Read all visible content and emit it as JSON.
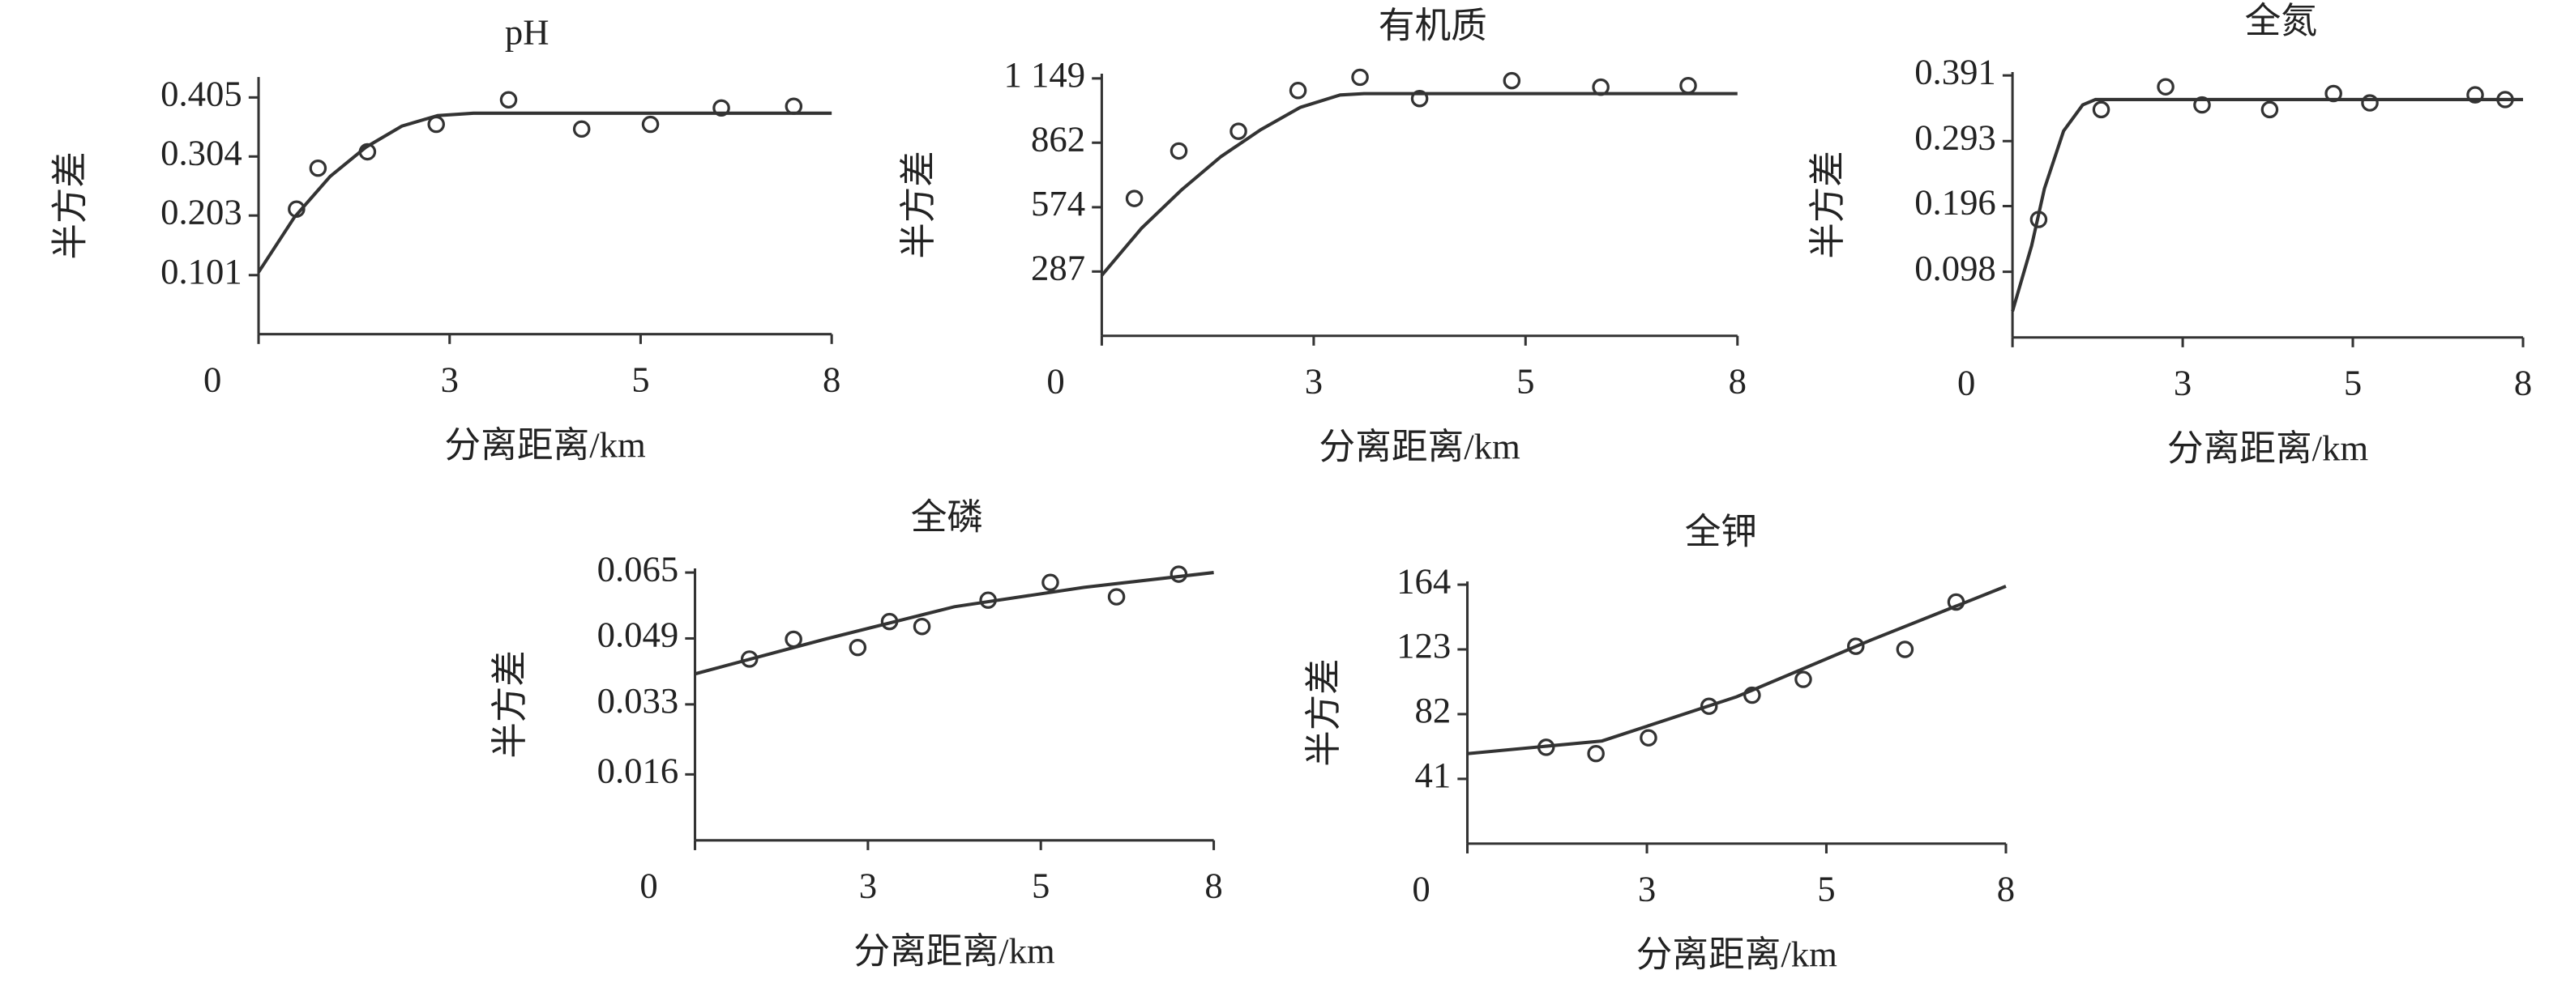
{
  "chart_data": [
    {
      "type": "scatter",
      "title": "pH",
      "xlabel": "分离距离/km",
      "ylabel": "半方差",
      "xlim": [
        0,
        8
      ],
      "xticks": [
        0,
        {
          "value": 2.667,
          "label": "3"
        },
        {
          "value": 5.333,
          "label": "5"
        },
        8
      ],
      "ylim": [
        0,
        0.44
      ],
      "yticks": [
        0.101,
        0.203,
        0.304,
        0.405
      ],
      "color": "#333333",
      "series": [
        {
          "style": "markers",
          "x": [
            0.53,
            0.83,
            1.52,
            2.48,
            3.49,
            4.51,
            5.47,
            6.46,
            7.47
          ],
          "values": [
            0.214,
            0.284,
            0.312,
            0.359,
            0.401,
            0.351,
            0.359,
            0.387,
            0.39
          ]
        },
        {
          "style": "line",
          "x": [
            0,
            0.5,
            1,
            1.5,
            2,
            2.5,
            3,
            8
          ],
          "values": [
            0.106,
            0.2,
            0.27,
            0.32,
            0.356,
            0.374,
            0.378,
            0.378
          ]
        }
      ]
    },
    {
      "type": "scatter",
      "title": "有机质",
      "xlabel": "分离距离/km",
      "ylabel": "半方差",
      "xlim": [
        0,
        8
      ],
      "xticks": [
        0,
        {
          "value": 2.667,
          "label": "3"
        },
        {
          "value": 5.333,
          "label": "5"
        },
        8
      ],
      "ylim": [
        0,
        1170
      ],
      "yticks": [
        287,
        574,
        862,
        {
          "value": 1149,
          "label": "1 149"
        }
      ],
      "color": "#333333",
      "series": [
        {
          "style": "markers",
          "x": [
            0.41,
            0.97,
            1.72,
            2.47,
            3.25,
            4.0,
            5.16,
            6.28,
            7.38
          ],
          "values": [
            613,
            825,
            913,
            1095,
            1154,
            1059,
            1139,
            1110,
            1117
          ]
        },
        {
          "style": "line",
          "x": [
            0,
            0.5,
            1,
            1.5,
            2,
            2.5,
            3,
            3.3,
            8
          ],
          "values": [
            270,
            480,
            650,
            800,
            920,
            1020,
            1075,
            1081,
            1081
          ]
        }
      ]
    },
    {
      "type": "scatter",
      "title": "全氮",
      "xlabel": "分离距离/km",
      "ylabel": "半方差",
      "xlim": [
        0,
        8
      ],
      "xticks": [
        0,
        {
          "value": 2.667,
          "label": "3"
        },
        {
          "value": 5.333,
          "label": "5"
        },
        8
      ],
      "ylim": [
        0,
        0.396
      ],
      "yticks": [
        0.098,
        0.196,
        0.293,
        0.391
      ],
      "color": "#333333",
      "series": [
        {
          "style": "markers",
          "x": [
            0.41,
            1.39,
            2.4,
            2.97,
            4.03,
            5.03,
            5.6,
            7.25,
            7.72
          ],
          "values": [
            0.176,
            0.34,
            0.374,
            0.347,
            0.34,
            0.364,
            0.35,
            0.362,
            0.355
          ]
        },
        {
          "style": "line",
          "x": [
            0,
            0.3,
            0.5,
            0.8,
            1.1,
            1.3,
            8
          ],
          "values": [
            0.039,
            0.137,
            0.222,
            0.308,
            0.347,
            0.355,
            0.355
          ]
        }
      ]
    },
    {
      "type": "scatter",
      "title": "全磷",
      "xlabel": "分离距离/km",
      "ylabel": "半方差",
      "xlim": [
        0,
        8
      ],
      "xticks": [
        0,
        {
          "value": 2.667,
          "label": "3"
        },
        {
          "value": 5.333,
          "label": "5"
        },
        8
      ],
      "ylim": [
        0,
        0.066
      ],
      "yticks": [
        0.016,
        0.033,
        0.049,
        0.065
      ],
      "color": "#333333",
      "series": [
        {
          "style": "markers",
          "x": [
            0.84,
            1.52,
            2.51,
            3.0,
            3.5,
            4.52,
            5.48,
            6.5,
            7.46
          ],
          "values": [
            0.044,
            0.0488,
            0.0468,
            0.0531,
            0.0519,
            0.0583,
            0.0626,
            0.0591,
            0.0646
          ]
        },
        {
          "style": "line",
          "x": [
            0,
            2,
            4,
            6,
            8
          ],
          "values": [
            0.0404,
            0.0488,
            0.0567,
            0.0614,
            0.065
          ]
        }
      ]
    },
    {
      "type": "scatter",
      "title": "全钾",
      "xlabel": "分离距离/km",
      "ylabel": "半方差",
      "xlim": [
        0,
        8
      ],
      "xticks": [
        0,
        {
          "value": 2.667,
          "label": "3"
        },
        {
          "value": 5.333,
          "label": "5"
        },
        8
      ],
      "ylim": [
        0,
        166
      ],
      "yticks": [
        41,
        82,
        123,
        164
      ],
      "color": "#333333",
      "series": [
        {
          "style": "markers",
          "x": [
            1.17,
            1.91,
            2.69,
            3.59,
            4.23,
            4.99,
            5.77,
            6.5,
            7.26
          ],
          "values": [
            61,
            57,
            67,
            87,
            94,
            104,
            125,
            123,
            153
          ]
        },
        {
          "style": "line",
          "x": [
            0,
            2,
            4,
            6,
            8
          ],
          "values": [
            57,
            65,
            93,
            129,
            163
          ]
        }
      ]
    }
  ]
}
